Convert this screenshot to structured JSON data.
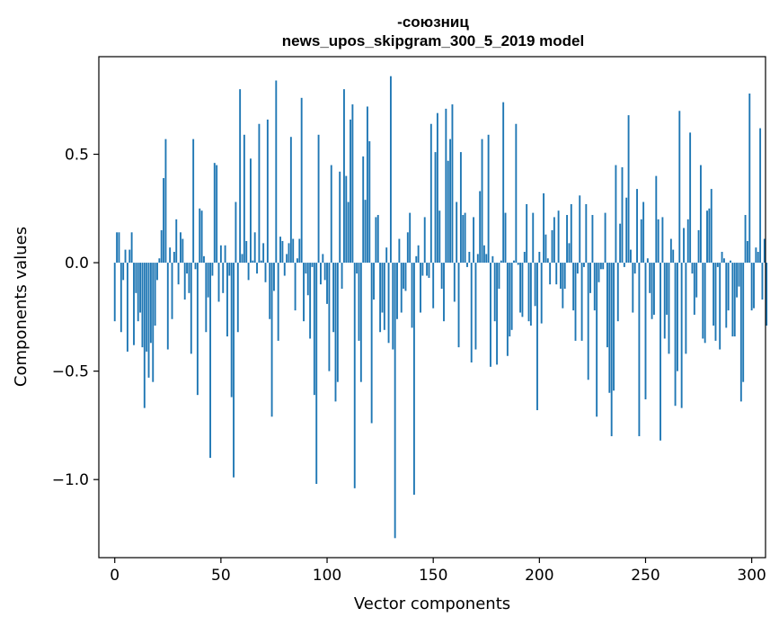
{
  "chart_data": {
    "type": "bar",
    "title": "-союзниц",
    "subtitle": "news_upos_skipgram_300_5_2019 model",
    "xlabel": "Vector components",
    "ylabel": "Components values",
    "xlim": [
      -7.5,
      306.5
    ],
    "ylim": [
      -1.36,
      0.95
    ],
    "xticks": [
      0,
      50,
      100,
      150,
      200,
      250,
      300
    ],
    "xtick_labels": [
      "0",
      "50",
      "100",
      "150",
      "200",
      "250",
      "300"
    ],
    "yticks": [
      -1.0,
      -0.5,
      0.0,
      0.5
    ],
    "ytick_labels": [
      "−1.0",
      "−0.5",
      "0.0",
      "0.5"
    ],
    "bar_color": "#1f77b4",
    "grid": false,
    "legend": "none",
    "x_start": 0,
    "values": [
      -0.27,
      0.14,
      0.14,
      -0.32,
      -0.08,
      0.06,
      -0.41,
      0.06,
      0.14,
      -0.38,
      -0.14,
      -0.27,
      -0.23,
      -0.39,
      -0.67,
      -0.41,
      -0.53,
      -0.37,
      -0.55,
      -0.29,
      -0.08,
      0.02,
      0.15,
      0.39,
      0.57,
      -0.4,
      0.07,
      -0.26,
      0.05,
      0.2,
      -0.1,
      0.14,
      0.11,
      -0.17,
      -0.05,
      -0.14,
      -0.42,
      0.57,
      -0.03,
      -0.61,
      0.25,
      0.24,
      0.03,
      -0.32,
      -0.16,
      -0.9,
      -0.06,
      0.46,
      0.45,
      -0.18,
      0.08,
      -0.14,
      0.08,
      -0.34,
      -0.06,
      -0.62,
      -0.99,
      0.28,
      -0.32,
      0.8,
      0.04,
      0.59,
      0.1,
      -0.08,
      0.48,
      0.01,
      0.14,
      -0.05,
      0.64,
      0.01,
      0.09,
      -0.09,
      0.66,
      -0.26,
      -0.71,
      -0.13,
      0.84,
      -0.36,
      0.12,
      0.1,
      -0.06,
      0.04,
      0.09,
      0.58,
      0.11,
      -0.22,
      0.02,
      0.11,
      0.76,
      -0.27,
      -0.05,
      -0.15,
      -0.35,
      -0.02,
      -0.61,
      -1.02,
      0.59,
      -0.1,
      0.04,
      -0.08,
      -0.19,
      -0.5,
      0.45,
      -0.32,
      -0.64,
      -0.55,
      0.42,
      -0.12,
      0.8,
      0.4,
      0.28,
      0.66,
      0.73,
      -1.04,
      -0.05,
      -0.36,
      -0.55,
      0.49,
      0.29,
      0.72,
      0.56,
      -0.74,
      -0.17,
      0.21,
      0.22,
      -0.32,
      -0.23,
      -0.31,
      0.07,
      -0.37,
      0.86,
      -0.4,
      -1.27,
      -0.26,
      0.11,
      -0.23,
      -0.12,
      -0.13,
      0.14,
      0.23,
      -0.3,
      -1.07,
      0.03,
      0.08,
      -0.23,
      -0.06,
      0.21,
      -0.06,
      -0.07,
      0.64,
      -0.21,
      0.51,
      0.69,
      0.24,
      -0.12,
      -0.27,
      0.71,
      0.47,
      0.57,
      0.73,
      -0.18,
      0.28,
      -0.39,
      0.51,
      0.22,
      0.23,
      -0.02,
      0.05,
      -0.46,
      0.21,
      -0.4,
      0.04,
      0.33,
      0.57,
      0.08,
      0.04,
      0.59,
      -0.48,
      0.03,
      -0.27,
      -0.47,
      -0.12,
      0.01,
      0.74,
      0.23,
      -0.43,
      -0.34,
      -0.31,
      0.01,
      0.64,
      -0.01,
      -0.23,
      -0.25,
      0.05,
      0.27,
      -0.27,
      -0.29,
      0.23,
      -0.2,
      -0.68,
      0.05,
      -0.28,
      0.32,
      0.13,
      0.02,
      -0.1,
      0.15,
      0.21,
      -0.1,
      0.24,
      -0.12,
      -0.21,
      -0.12,
      0.22,
      0.09,
      0.27,
      -0.22,
      -0.36,
      -0.05,
      0.31,
      -0.36,
      -0.02,
      0.27,
      -0.54,
      -0.14,
      0.22,
      -0.22,
      -0.71,
      -0.09,
      -0.03,
      -0.03,
      0.23,
      -0.39,
      -0.6,
      -0.8,
      -0.59,
      0.45,
      -0.27,
      0.18,
      0.44,
      -0.02,
      0.3,
      0.68,
      0.06,
      -0.23,
      -0.05,
      0.34,
      -0.8,
      0.2,
      0.28,
      -0.63,
      0.02,
      -0.14,
      -0.26,
      -0.24,
      0.4,
      0.2,
      -0.82,
      0.21,
      -0.35,
      -0.24,
      -0.42,
      0.11,
      0.06,
      -0.66,
      -0.5,
      0.7,
      -0.67,
      0.16,
      -0.42,
      0.2,
      0.6,
      -0.05,
      -0.24,
      -0.16,
      0.15,
      0.45,
      -0.35,
      -0.37,
      0.24,
      0.25,
      0.34,
      -0.29,
      -0.36,
      -0.02,
      -0.4,
      0.05,
      0.02,
      -0.3,
      -0.22,
      0.01,
      -0.34,
      -0.34,
      -0.16,
      -0.11,
      -0.64,
      -0.55,
      0.22,
      0.1,
      0.78,
      -0.22,
      -0.21,
      0.07,
      0.05,
      0.62,
      -0.17,
      0.11,
      -0.29
    ]
  }
}
